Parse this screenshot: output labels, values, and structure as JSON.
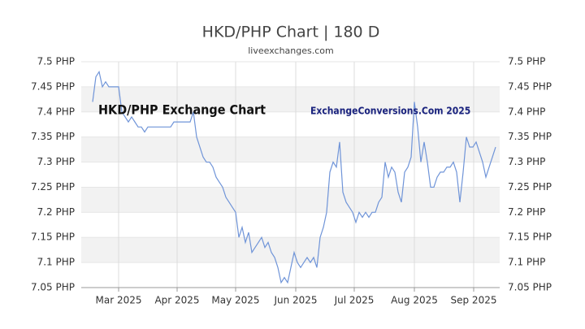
{
  "chart_data": {
    "type": "line",
    "title": "HKD/PHP Chart | 180 D",
    "subtitle": "liveexchanges.com",
    "annotations": [
      "HKD/PHP Exchange Chart",
      "ExchangeConversions.Com 2025"
    ],
    "xlim": [
      -3.5,
      125.25
    ],
    "xticks": [
      {
        "value": 8,
        "label": "Mar 2025"
      },
      {
        "value": 26,
        "label": "Apr 2025"
      },
      {
        "value": 44,
        "label": "May 2025"
      },
      {
        "value": 62.5,
        "label": "Jun 2025"
      },
      {
        "value": 80.5,
        "label": "Jul 2025"
      },
      {
        "value": 99,
        "label": "Aug 2025"
      },
      {
        "value": 117.25,
        "label": "Sep 2025"
      }
    ],
    "ylim": [
      7.05,
      7.5
    ],
    "yticks": [
      {
        "value": 7.05,
        "label": "7.05 PHP"
      },
      {
        "value": 7.1,
        "label": "7.1 PHP"
      },
      {
        "value": 7.15,
        "label": "7.15 PHP"
      },
      {
        "value": 7.2,
        "label": "7.2 PHP"
      },
      {
        "value": 7.25,
        "label": "7.25 PHP"
      },
      {
        "value": 7.3,
        "label": "7.3 PHP"
      },
      {
        "value": 7.35,
        "label": "7.35 PHP"
      },
      {
        "value": 7.4,
        "label": "7.4 PHP"
      },
      {
        "value": 7.45,
        "label": "7.45 PHP"
      },
      {
        "value": 7.5,
        "label": "7.5 PHP"
      }
    ],
    "grid": true,
    "color": "#6f94d8",
    "values": [
      7.42,
      7.47,
      7.48,
      7.45,
      7.46,
      7.45,
      7.45,
      7.45,
      7.45,
      7.4,
      7.39,
      7.38,
      7.39,
      7.38,
      7.37,
      7.37,
      7.36,
      7.37,
      7.37,
      7.37,
      7.37,
      7.37,
      7.37,
      7.37,
      7.37,
      7.38,
      7.38,
      7.38,
      7.38,
      7.38,
      7.38,
      7.4,
      7.35,
      7.33,
      7.31,
      7.3,
      7.3,
      7.29,
      7.27,
      7.26,
      7.25,
      7.23,
      7.22,
      7.21,
      7.2,
      7.15,
      7.17,
      7.14,
      7.16,
      7.12,
      7.13,
      7.14,
      7.15,
      7.13,
      7.14,
      7.12,
      7.11,
      7.09,
      7.06,
      7.07,
      7.06,
      7.09,
      7.12,
      7.1,
      7.09,
      7.1,
      7.11,
      7.1,
      7.11,
      7.09,
      7.15,
      7.17,
      7.2,
      7.28,
      7.3,
      7.29,
      7.34,
      7.24,
      7.22,
      7.21,
      7.2,
      7.18,
      7.2,
      7.19,
      7.2,
      7.19,
      7.2,
      7.2,
      7.22,
      7.23,
      7.3,
      7.27,
      7.29,
      7.28,
      7.24,
      7.22,
      7.28,
      7.29,
      7.31,
      7.42,
      7.37,
      7.3,
      7.34,
      7.3,
      7.25,
      7.25,
      7.27,
      7.28,
      7.28,
      7.29,
      7.29,
      7.3,
      7.28,
      7.22,
      7.28,
      7.35,
      7.33,
      7.33,
      7.34,
      7.32,
      7.3,
      7.27,
      7.29,
      7.31,
      7.33
    ]
  }
}
